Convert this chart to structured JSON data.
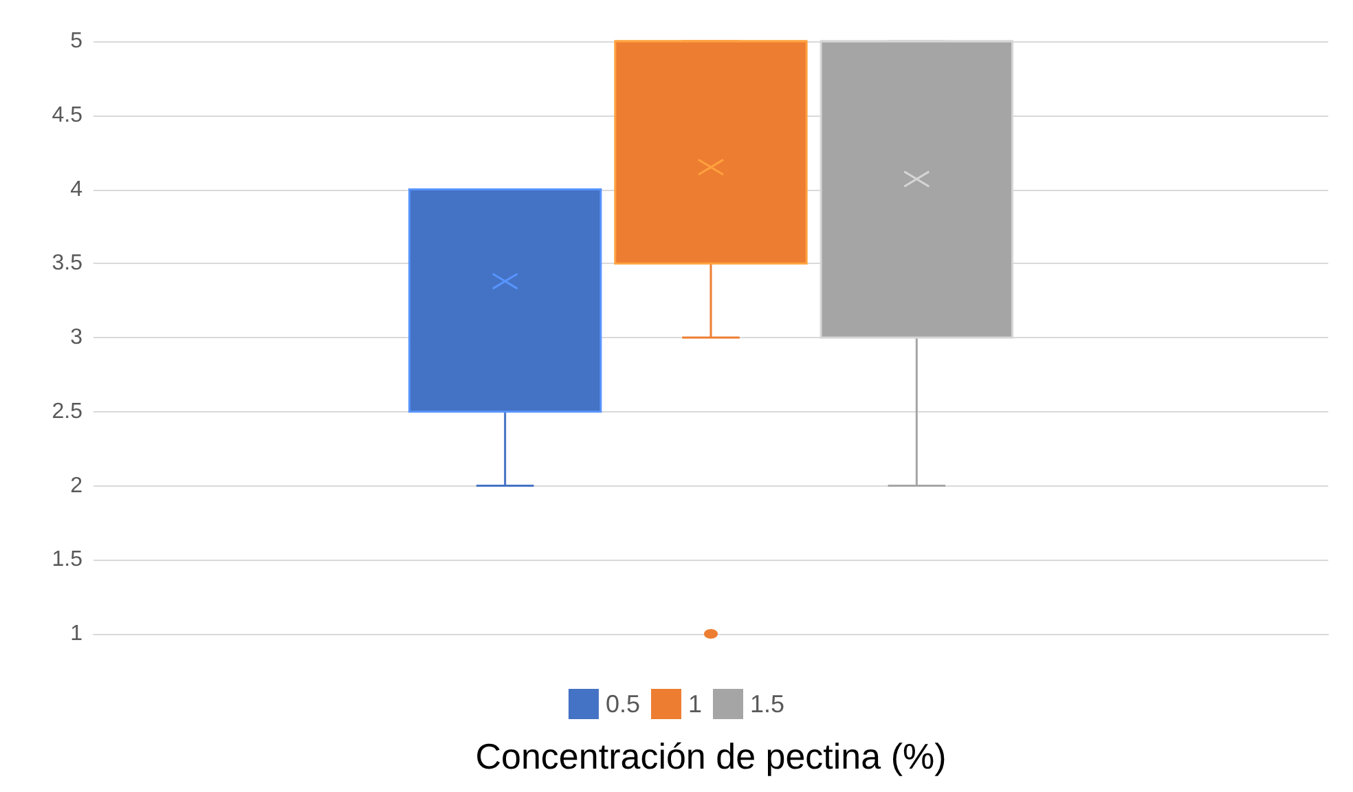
{
  "chart_data": {
    "type": "box",
    "xlabel": "Concentración de pectina (%)",
    "categories": [
      null
    ],
    "series": [
      {
        "name": "0.5",
        "color": "#4472c4",
        "boxes": [
          {
            "low": 2,
            "q1": 2.5,
            "median": 4,
            "q3": 4,
            "high": 4,
            "mean": 3.38
          }
        ]
      },
      {
        "name": "1",
        "color": "#ed7d31",
        "boxes": [
          {
            "low": 3,
            "q1": 3.5,
            "median": 5,
            "q3": 5,
            "high": 5,
            "mean": 4.15,
            "outliers": [
              1
            ]
          }
        ]
      },
      {
        "name": "1.5",
        "color": "#a5a5a5",
        "boxes": [
          {
            "low": 2,
            "q1": 3,
            "median": 5,
            "q3": 5,
            "high": 5,
            "mean": 4.07
          }
        ]
      }
    ],
    "ylim": [
      1,
      5
    ],
    "yticks": [
      1,
      1.5,
      2,
      2.5,
      3,
      3.5,
      4,
      4.5,
      5
    ],
    "grid": "y",
    "legend": "bottom"
  }
}
